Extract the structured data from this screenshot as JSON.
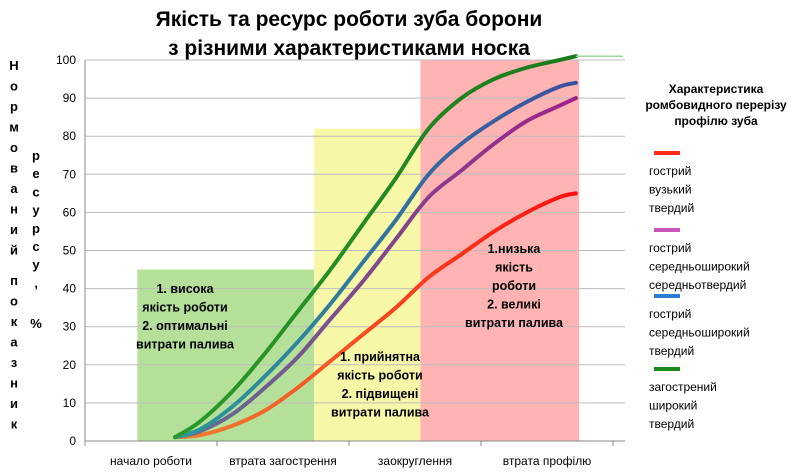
{
  "chart_data": {
    "type": "line",
    "title": [
      "Якість та ресурс роботи зуба борони",
      "з різними характеристиками  носка"
    ],
    "ylabel": [
      "Нормований",
      "показник",
      "ресурсу,",
      "%"
    ],
    "ylim": [
      0,
      100
    ],
    "yticks": [
      "0",
      "10",
      "20",
      "30",
      "40",
      "50",
      "60",
      "70",
      "80",
      "90",
      "100"
    ],
    "xlim": [
      0,
      3.3
    ],
    "xticks": [
      {
        "x": 0.47,
        "label": "начало роботи"
      },
      {
        "x": 1.47,
        "label": "втрата загострення"
      },
      {
        "x": 2.47,
        "label": "заокруглення"
      },
      {
        "x": 3.47,
        "label": "втрата профілю"
      }
    ],
    "legend": {
      "title": [
        "Характеристика",
        "ромбовидного перерізу",
        "профілю зуба"
      ],
      "entries": [
        {
          "lines": [
            "гострий",
            "вузький",
            "твердий"
          ],
          "color": "#ff2a1a"
        },
        {
          "lines": [
            "гострий",
            "середньоширокий",
            "середньотвердий"
          ],
          "color": "#cc55bb"
        },
        {
          "lines": [
            "гострий",
            "середньоширокий",
            "твердий"
          ],
          "color": "#2b7fcf"
        },
        {
          "lines": [
            "загострений",
            "широкий",
            "твердий"
          ],
          "color": "#1a8a1a"
        }
      ]
    },
    "zones": [
      {
        "x0": 0.32,
        "x1": 1.4,
        "y1": 45,
        "color": "#b5e09a",
        "text": [
          "1. висока",
          "якість роботи",
          "2. оптимальні",
          "витрати палива"
        ]
      },
      {
        "x0": 1.4,
        "x1": 2.05,
        "y1": 82,
        "color": "#f7f7a8",
        "text": [
          "1. прийнятна",
          "якість  роботи",
          "2. підвищені",
          "витрати палива"
        ]
      },
      {
        "x0": 2.05,
        "x1": 3.02,
        "y1": 100,
        "color": "#ffb3b3",
        "text": [
          "1.низька",
          "якість",
          "роботи",
          "2. великі",
          "витрати палива"
        ]
      }
    ],
    "series": [
      {
        "color_start": "#f08030",
        "color_end": "#ff1010",
        "x": [
          0.55,
          0.7,
          0.9,
          1.1,
          1.3,
          1.5,
          1.7,
          1.9,
          2.1,
          2.3,
          2.5,
          2.7,
          2.9,
          3.0
        ],
        "y": [
          1,
          1.5,
          4,
          8,
          14,
          21,
          28,
          35,
          43,
          49,
          55,
          60,
          64,
          65
        ]
      },
      {
        "color_start": "#607090",
        "color_end": "#a0208a",
        "x": [
          0.55,
          0.7,
          0.9,
          1.1,
          1.3,
          1.5,
          1.7,
          1.9,
          2.1,
          2.3,
          2.5,
          2.7,
          2.9,
          3.0
        ],
        "y": [
          1,
          2.5,
          7,
          14,
          22,
          32,
          42,
          53,
          64,
          71,
          78,
          84,
          88,
          90
        ]
      },
      {
        "color_start": "#2a9a9a",
        "color_end": "#3a50a0",
        "x": [
          0.55,
          0.7,
          0.9,
          1.1,
          1.3,
          1.5,
          1.7,
          1.9,
          2.1,
          2.3,
          2.5,
          2.7,
          2.9,
          3.0
        ],
        "y": [
          1,
          3,
          9,
          17,
          26,
          36,
          47,
          58,
          70,
          78,
          84,
          89,
          93,
          94
        ]
      },
      {
        "color_start": "#2a9a2a",
        "color_end": "#1a7a1a",
        "x": [
          0.55,
          0.7,
          0.9,
          1.1,
          1.3,
          1.5,
          1.7,
          1.9,
          2.1,
          2.3,
          2.5,
          2.7,
          2.9,
          3.0
        ],
        "y": [
          1,
          5,
          13,
          23,
          34,
          45,
          57,
          69,
          82,
          90,
          95,
          98,
          100,
          101
        ]
      }
    ]
  }
}
